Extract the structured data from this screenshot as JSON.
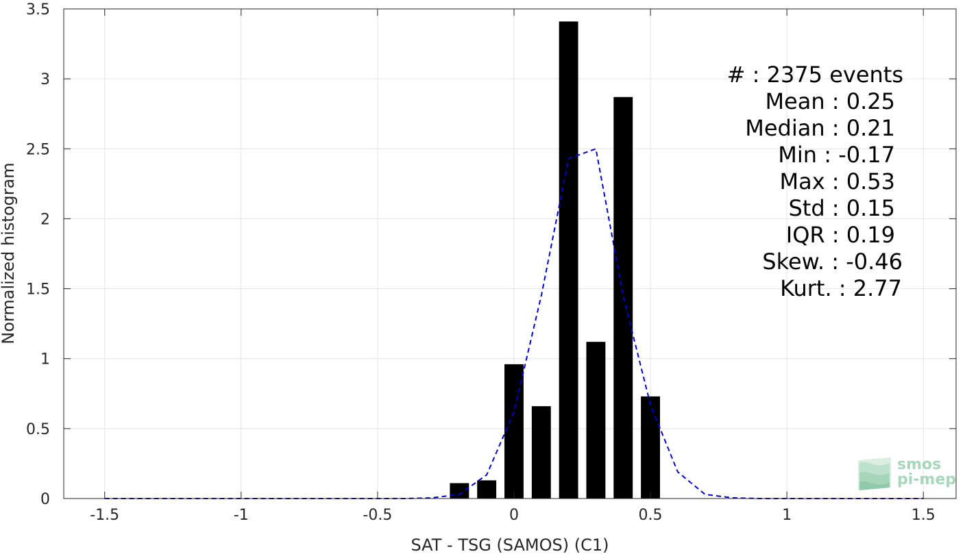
{
  "chart_data": {
    "type": "bar",
    "xlabel": "SAT - TSG (SAMOS) (C1)",
    "ylabel": "Normalized histogram",
    "xlim": [
      -1.65,
      1.62
    ],
    "ylim": [
      0,
      3.5
    ],
    "xticks": [
      -1.5,
      -1,
      -0.5,
      0,
      0.5,
      1,
      1.5
    ],
    "xtick_labels": [
      "-1.5",
      "-1",
      "-0.5",
      "0",
      "0.5",
      "1",
      "1.5"
    ],
    "yticks": [
      0,
      0.5,
      1,
      1.5,
      2,
      2.5,
      3,
      3.5
    ],
    "ytick_labels": [
      "0",
      "0.5",
      "1",
      "1.5",
      "2",
      "2.5",
      "3",
      "3.5"
    ],
    "grid": true,
    "bar_color": "#000000",
    "bar_width": 0.07,
    "bars": {
      "x": [
        -0.2,
        -0.1,
        0.0,
        0.1,
        0.2,
        0.3,
        0.4,
        0.5
      ],
      "values": [
        0.11,
        0.13,
        0.96,
        0.66,
        3.41,
        1.12,
        2.87,
        0.73
      ]
    },
    "series": [
      {
        "style": "dashed",
        "color": "#0000cc",
        "x": [
          -1.5,
          -0.4,
          -0.3,
          -0.2,
          -0.1,
          0.0,
          0.1,
          0.2,
          0.3,
          0.4,
          0.5,
          0.6,
          0.7,
          0.8,
          0.9,
          1.0,
          1.5
        ],
        "values": [
          0,
          0,
          0.005,
          0.03,
          0.17,
          0.62,
          1.45,
          2.43,
          2.5,
          1.45,
          0.67,
          0.19,
          0.03,
          0.005,
          0,
          0,
          0
        ]
      }
    ],
    "annotations": [
      "#  : 2375 events",
      "Mean : 0.25",
      "Median : 0.21",
      "Min : -0.17",
      "Max : 0.53",
      "Std : 0.15",
      "IQR : 0.19",
      "Skew. : -0.46",
      "Kurt. : 2.77"
    ]
  },
  "logo": {
    "line1": "smos",
    "line2": "pi-mep",
    "color": "#8cc9a6"
  }
}
